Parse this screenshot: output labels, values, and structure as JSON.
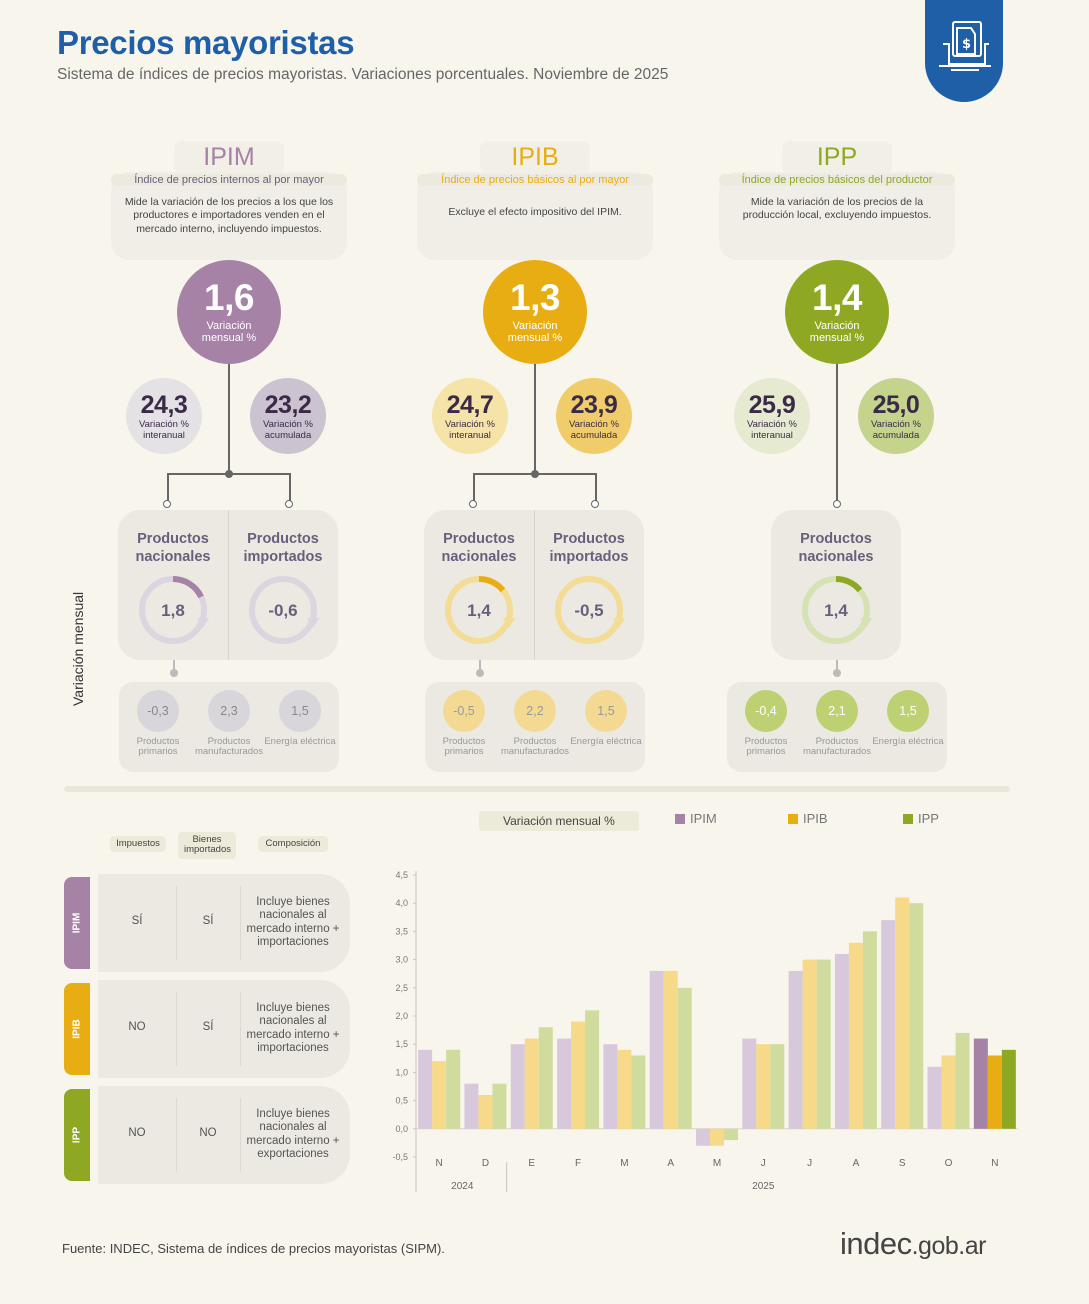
{
  "header": {
    "title": "Precios mayoristas",
    "subtitle": "Sistema de índices de precios mayoristas. Variaciones porcentuales. Noviembre de 2025"
  },
  "columns": [
    {
      "name": "IPIM",
      "full_name": "Índice de precios internos al por mayor",
      "description": "Mide la variación de los precios a los que los productores e importadores venden en el mercado interno, incluyendo impuestos.",
      "color": "#a582a6",
      "monthly": "1,6",
      "monthly_label": "Variación mensual %",
      "interanual": "24,3",
      "interanual_label": "Variación % interanual",
      "acumulada": "23,2",
      "acumulada_label": "Variación % acumulada",
      "products": [
        {
          "title": "Productos nacionales",
          "value": "1,8",
          "ring": 0.18
        },
        {
          "title": "Productos importados",
          "value": "-0,6",
          "ring": -0.06
        }
      ],
      "sub": [
        {
          "value": "-0,3",
          "label": "Productos primarios"
        },
        {
          "value": "2,3",
          "label": "Productos manufacturados"
        },
        {
          "value": "1,5",
          "label": "Energía eléctrica"
        }
      ]
    },
    {
      "name": "IPIB",
      "full_name": "Índice de precios básicos al por mayor",
      "description": "Excluye el efecto impositivo del IPIM.",
      "color": "#e8ad12",
      "monthly": "1,3",
      "monthly_label": "Variación mensual %",
      "interanual": "24,7",
      "interanual_label": "Variación % interanual",
      "acumulada": "23,9",
      "acumulada_label": "Variación % acumulada",
      "products": [
        {
          "title": "Productos nacionales",
          "value": "1,4",
          "ring": 0.14
        },
        {
          "title": "Productos importados",
          "value": "-0,5",
          "ring": -0.05
        }
      ],
      "sub": [
        {
          "value": "-0,5",
          "label": "Productos primarios"
        },
        {
          "value": "2,2",
          "label": "Productos manufacturados"
        },
        {
          "value": "1,5",
          "label": "Energía eléctrica"
        }
      ]
    },
    {
      "name": "IPP",
      "full_name": "Índice de precios básicos del productor",
      "description": "Mide la variación de los precios de la producción local, excluyendo impuestos.",
      "color": "#8fa823",
      "monthly": "1,4",
      "monthly_label": "Variación mensual %",
      "interanual": "25,9",
      "interanual_label": "Variación % interanual",
      "acumulada": "25,0",
      "acumulada_label": "Variación % acumulada",
      "products": [
        {
          "title": "Productos nacionales",
          "value": "1,4",
          "ring": 0.14
        }
      ],
      "sub": [
        {
          "value": "-0,4",
          "label": "Productos primarios"
        },
        {
          "value": "2,1",
          "label": "Productos manufacturados"
        },
        {
          "value": "1,5",
          "label": "Energía eléctrica"
        }
      ]
    }
  ],
  "side_label": "Variación mensual",
  "comparison_table": {
    "headers": [
      "Impuestos",
      "Bienes importados",
      "Composición"
    ],
    "rows": [
      {
        "index": "IPIM",
        "impuestos": "SÍ",
        "importados": "SÍ",
        "composicion": "Incluye bienes nacionales al mercado interno + importaciones",
        "color": "#a582a6"
      },
      {
        "index": "IPIB",
        "impuestos": "NO",
        "importados": "SÍ",
        "composicion": "Incluye bienes nacionales al mercado interno + importaciones",
        "color": "#e8ad12"
      },
      {
        "index": "IPP",
        "impuestos": "NO",
        "importados": "NO",
        "composicion": "Incluye bienes nacionales al mercado interno + exportaciones",
        "color": "#8fa823"
      }
    ]
  },
  "chart_data": {
    "type": "bar",
    "title": "Variación mensual %",
    "categories": [
      "N",
      "D",
      "E",
      "F",
      "M",
      "A",
      "M",
      "J",
      "J",
      "A",
      "S",
      "O",
      "N"
    ],
    "year_labels": [
      {
        "label": "2024",
        "from": 0,
        "to": 1
      },
      {
        "label": "2025",
        "from": 2,
        "to": 12
      }
    ],
    "series": [
      {
        "name": "IPIM",
        "color": "#a582a6",
        "light": "#d7c8dc",
        "values": [
          1.4,
          0.8,
          1.5,
          1.6,
          1.5,
          2.8,
          -0.3,
          1.6,
          2.8,
          3.1,
          3.7,
          1.1,
          1.6
        ]
      },
      {
        "name": "IPIB",
        "color": "#e8ad12",
        "light": "#f7d98a",
        "values": [
          1.2,
          0.6,
          1.6,
          1.9,
          1.4,
          2.8,
          -0.3,
          1.5,
          3.0,
          3.3,
          4.1,
          1.3,
          1.3
        ]
      },
      {
        "name": "IPP",
        "color": "#8fa823",
        "light": "#cfdc9d",
        "values": [
          1.4,
          0.8,
          1.8,
          2.1,
          1.3,
          2.5,
          -0.2,
          1.5,
          3.0,
          3.5,
          4.0,
          1.7,
          1.4
        ]
      }
    ],
    "ylim": [
      -0.5,
      4.5
    ],
    "yticks": [
      "-0,5",
      "0,0",
      "0,5",
      "1,0",
      "1,5",
      "2,0",
      "2,5",
      "3,0",
      "3,5",
      "4,0",
      "4,5"
    ],
    "grid": false,
    "legend": "top"
  },
  "footer": {
    "source": "Fuente: INDEC, Sistema de índices de precios mayoristas (SIPM).",
    "brand_main": "indec",
    "brand_suffix": ".gob.ar"
  }
}
